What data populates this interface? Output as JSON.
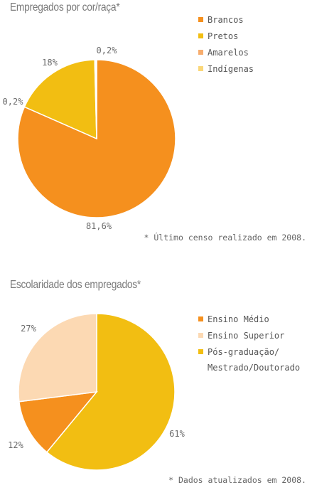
{
  "chart_data": [
    {
      "type": "pie",
      "title": "Empregados por cor/raça*",
      "legend_position": "top-right",
      "slices": [
        {
          "name": "Brancos",
          "value": 81.6,
          "label": "81,6%",
          "color": "#f5901e"
        },
        {
          "name": "Pretos",
          "value": 18,
          "label": "18%",
          "color": "#f2be12"
        },
        {
          "name": "Amarelos",
          "value": 0.2,
          "label": "0,2%",
          "color": "#f7ad6e"
        },
        {
          "name": "Indígenas",
          "value": 0.2,
          "label": "0,2%",
          "color": "#fad779"
        }
      ],
      "footnote": "* Último censo realizado em 2008."
    },
    {
      "type": "pie",
      "title": "Escolaridade dos empregados*",
      "legend_position": "right",
      "slices": [
        {
          "name": "Pós-graduação/ Mestrado/Doutorado",
          "legend_lines": [
            "Pós-graduação/",
            "Mestrado/Doutorado"
          ],
          "value": 61,
          "label": "61%",
          "color": "#f2be12"
        },
        {
          "name": "Ensino Médio",
          "value": 12,
          "label": "12%",
          "color": "#f5901e"
        },
        {
          "name": "Ensino Superior",
          "value": 27,
          "label": "27%",
          "color": "#fcd9b3"
        }
      ],
      "legend_order": [
        "Ensino Médio",
        "Ensino Superior",
        "Pós-graduação/ Mestrado/Doutorado"
      ],
      "footnote": "* Dados atualizados em 2008."
    }
  ]
}
